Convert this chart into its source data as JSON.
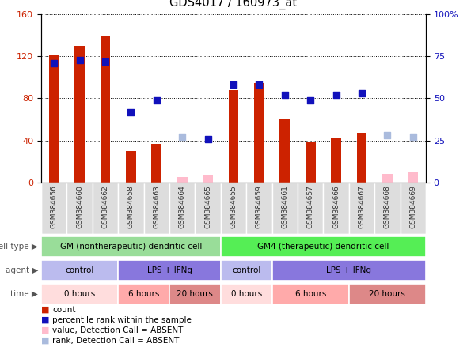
{
  "title": "GDS4017 / 160973_at",
  "samples": [
    "GSM384656",
    "GSM384660",
    "GSM384662",
    "GSM384658",
    "GSM384663",
    "GSM384664",
    "GSM384665",
    "GSM384655",
    "GSM384659",
    "GSM384661",
    "GSM384657",
    "GSM384666",
    "GSM384667",
    "GSM384668",
    "GSM384669"
  ],
  "count_values": [
    121,
    130,
    140,
    30,
    37,
    null,
    null,
    88,
    95,
    60,
    39,
    43,
    47,
    null,
    null
  ],
  "count_absent": [
    null,
    null,
    null,
    null,
    null,
    5,
    7,
    null,
    null,
    null,
    null,
    null,
    null,
    8,
    10
  ],
  "rank_values": [
    71,
    73,
    72,
    42,
    49,
    null,
    26,
    58,
    58,
    52,
    49,
    52,
    53,
    null,
    null
  ],
  "rank_absent": [
    null,
    null,
    null,
    null,
    null,
    27,
    null,
    null,
    null,
    null,
    null,
    null,
    null,
    28,
    27
  ],
  "ylim_left": [
    0,
    160
  ],
  "ylim_right": [
    0,
    100
  ],
  "yticks_left": [
    0,
    40,
    80,
    120,
    160
  ],
  "yticks_right": [
    0,
    25,
    50,
    75,
    100
  ],
  "yticklabels_left": [
    "0",
    "40",
    "80",
    "120",
    "160"
  ],
  "yticklabels_right": [
    "0",
    "25",
    "50",
    "75",
    "100%"
  ],
  "color_bar_present": "#cc2200",
  "color_bar_absent": "#ffbbcc",
  "color_dot_present": "#1111bb",
  "color_dot_absent": "#aabbdd",
  "cell_type_groups": [
    {
      "label": "GM (nontherapeutic) dendritic cell",
      "start": 0,
      "end": 7,
      "color": "#99dd99"
    },
    {
      "label": "GM4 (therapeutic) dendritic cell",
      "start": 7,
      "end": 15,
      "color": "#55ee55"
    }
  ],
  "agent_groups": [
    {
      "label": "control",
      "start": 0,
      "end": 3,
      "color": "#bbbbee"
    },
    {
      "label": "LPS + IFNg",
      "start": 3,
      "end": 7,
      "color": "#8877dd"
    },
    {
      "label": "control",
      "start": 7,
      "end": 9,
      "color": "#bbbbee"
    },
    {
      "label": "LPS + IFNg",
      "start": 9,
      "end": 15,
      "color": "#8877dd"
    }
  ],
  "time_groups": [
    {
      "label": "0 hours",
      "start": 0,
      "end": 3,
      "color": "#ffdddd"
    },
    {
      "label": "6 hours",
      "start": 3,
      "end": 5,
      "color": "#ffaaaa"
    },
    {
      "label": "20 hours",
      "start": 5,
      "end": 7,
      "color": "#dd8888"
    },
    {
      "label": "0 hours",
      "start": 7,
      "end": 9,
      "color": "#ffdddd"
    },
    {
      "label": "6 hours",
      "start": 9,
      "end": 12,
      "color": "#ffaaaa"
    },
    {
      "label": "20 hours",
      "start": 12,
      "end": 15,
      "color": "#dd8888"
    }
  ],
  "row_labels": [
    "cell type",
    "agent",
    "time"
  ],
  "legend_items": [
    {
      "label": "count",
      "color": "#cc2200"
    },
    {
      "label": "percentile rank within the sample",
      "color": "#1111bb"
    },
    {
      "label": "value, Detection Call = ABSENT",
      "color": "#ffbbcc"
    },
    {
      "label": "rank, Detection Call = ABSENT",
      "color": "#aabbdd"
    }
  ],
  "bg_color": "#ffffff",
  "plot_bg": "#ffffff"
}
